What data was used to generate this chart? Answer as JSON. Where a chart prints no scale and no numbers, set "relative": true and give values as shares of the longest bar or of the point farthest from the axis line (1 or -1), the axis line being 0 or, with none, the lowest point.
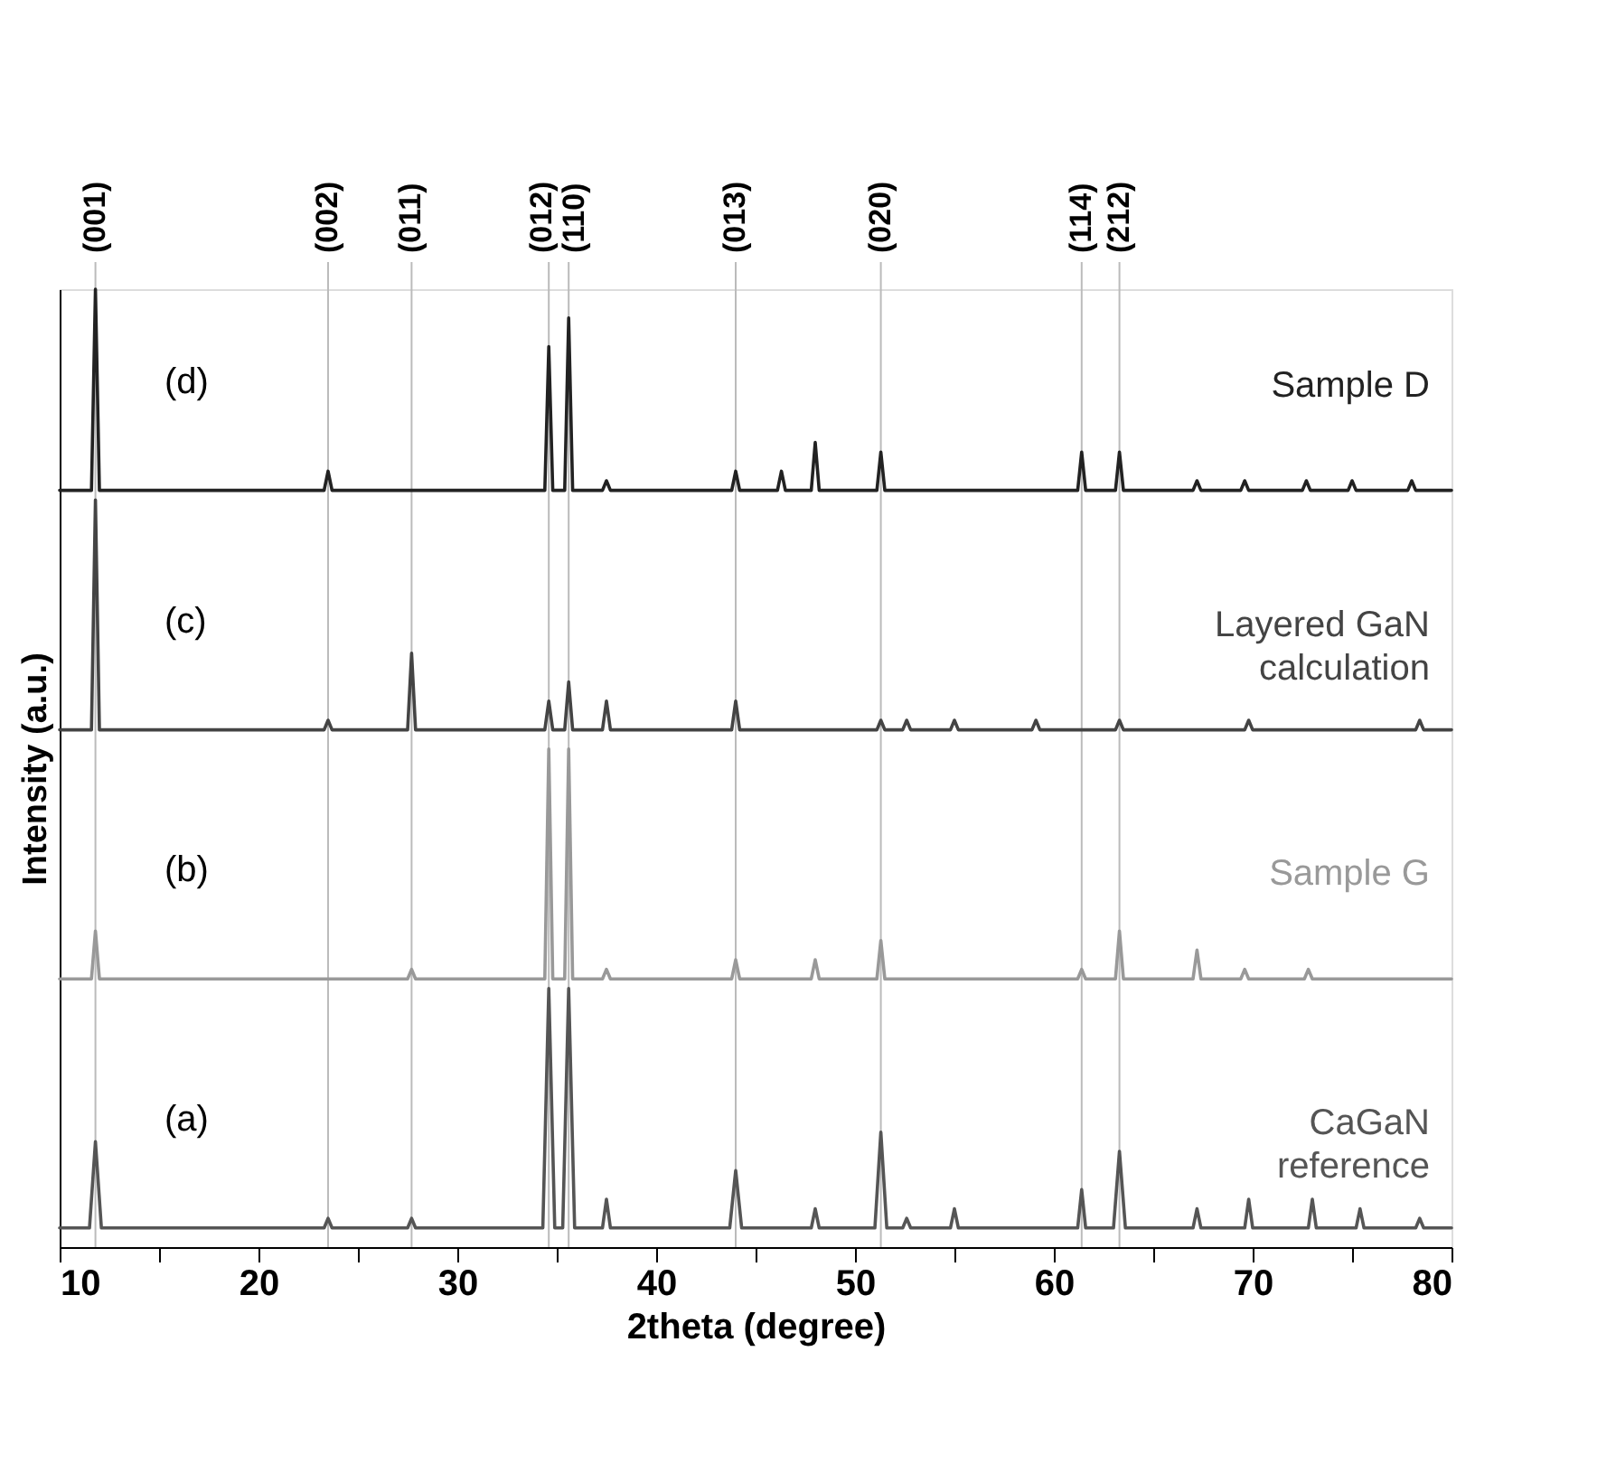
{
  "chart_data": {
    "type": "line",
    "relative": true,
    "xlabel": "2theta (degree)",
    "ylabel": "Intensity (a.u.)",
    "xlim": [
      10,
      80
    ],
    "xticks": [
      10,
      {
        "value": 15,
        "label": null
      },
      20,
      {
        "value": 25,
        "label": null
      },
      30,
      {
        "value": 35,
        "label": null
      },
      40,
      {
        "value": 45,
        "label": null
      },
      50,
      {
        "value": 55,
        "label": null
      },
      60,
      {
        "value": 65,
        "label": null
      },
      70,
      {
        "value": 75,
        "label": null
      },
      80
    ],
    "grid": false,
    "line_style": "solid",
    "legend": false,
    "annotations": [
      "(a)",
      "(b)",
      "(c)",
      "(d)",
      "(001)",
      "(002)",
      "(011)",
      "(012)",
      "(110)",
      "(013)",
      "(020)",
      "(114)",
      "(212)"
    ],
    "ref_lines": [
      {
        "axis": "x",
        "value": 11.8,
        "color": "#bbbbbb"
      },
      {
        "axis": "x",
        "value": 23.5,
        "color": "#bbbbbb"
      },
      {
        "axis": "x",
        "value": 27.7,
        "color": "#bbbbbb"
      },
      {
        "axis": "x",
        "value": 34.6,
        "color": "#bbbbbb"
      },
      {
        "axis": "x",
        "value": 35.6,
        "color": "#bbbbbb"
      },
      {
        "axis": "x",
        "value": 44.0,
        "color": "#bbbbbb"
      },
      {
        "axis": "x",
        "value": 51.3,
        "color": "#bbbbbb"
      },
      {
        "axis": "x",
        "value": 61.4,
        "color": "#bbbbbb"
      },
      {
        "axis": "x",
        "value": 63.3,
        "color": "#bbbbbb"
      }
    ],
    "series": [
      {
        "name": "CaGaN\nreference",
        "color": "#555555",
        "x": [
          10,
          11.5,
          11.8,
          12.1,
          23.3,
          23.5,
          23.7,
          27.5,
          27.7,
          27.9,
          34.3,
          34.6,
          34.9,
          35.3,
          35.6,
          35.9,
          37.3,
          37.5,
          37.7,
          43.7,
          44.0,
          44.3,
          47.8,
          48.0,
          48.2,
          51.0,
          51.3,
          51.6,
          52.4,
          52.6,
          52.8,
          54.8,
          55.0,
          55.2,
          61.2,
          61.4,
          61.6,
          63.0,
          63.3,
          63.6,
          67.0,
          67.2,
          67.4,
          69.6,
          69.8,
          70.0,
          72.8,
          73.0,
          73.2,
          75.2,
          75.4,
          75.6,
          78.2,
          78.4,
          78.6,
          80
        ],
        "values": [
          0.02,
          0.02,
          0.11,
          0.02,
          0.02,
          0.03,
          0.02,
          0.02,
          0.03,
          0.02,
          0.02,
          0.27,
          0.02,
          0.02,
          0.27,
          0.02,
          0.02,
          0.05,
          0.02,
          0.02,
          0.08,
          0.02,
          0.02,
          0.04,
          0.02,
          0.02,
          0.12,
          0.02,
          0.02,
          0.03,
          0.02,
          0.02,
          0.04,
          0.02,
          0.02,
          0.06,
          0.02,
          0.02,
          0.1,
          0.02,
          0.02,
          0.04,
          0.02,
          0.02,
          0.05,
          0.02,
          0.02,
          0.05,
          0.02,
          0.02,
          0.04,
          0.02,
          0.02,
          0.03,
          0.02,
          0.02
        ]
      },
      {
        "name": "Sample G",
        "color": "#999999",
        "x": [
          10,
          11.6,
          11.8,
          12.0,
          27.5,
          27.7,
          27.9,
          34.4,
          34.6,
          34.8,
          35.4,
          35.6,
          35.8,
          37.3,
          37.5,
          37.7,
          43.8,
          44.0,
          44.2,
          47.8,
          48.0,
          48.2,
          51.1,
          51.3,
          51.5,
          61.2,
          61.4,
          61.6,
          63.1,
          63.3,
          63.5,
          67.0,
          67.2,
          67.4,
          69.4,
          69.6,
          69.8,
          72.6,
          72.8,
          73.0,
          80
        ],
        "values": [
          0.28,
          0.28,
          0.33,
          0.28,
          0.28,
          0.29,
          0.28,
          0.28,
          0.52,
          0.28,
          0.28,
          0.52,
          0.28,
          0.28,
          0.29,
          0.28,
          0.28,
          0.3,
          0.28,
          0.28,
          0.3,
          0.28,
          0.28,
          0.32,
          0.28,
          0.28,
          0.29,
          0.28,
          0.28,
          0.33,
          0.28,
          0.28,
          0.31,
          0.28,
          0.28,
          0.29,
          0.28,
          0.28,
          0.29,
          0.28,
          0.28
        ]
      },
      {
        "name": "Layered GaN\ncalculation",
        "color": "#444444",
        "x": [
          10,
          11.6,
          11.8,
          12.0,
          23.3,
          23.5,
          23.7,
          27.5,
          27.7,
          27.9,
          34.4,
          34.6,
          34.8,
          35.4,
          35.6,
          35.8,
          37.3,
          37.5,
          37.7,
          43.8,
          44.0,
          44.2,
          51.1,
          51.3,
          51.5,
          52.4,
          52.6,
          52.8,
          54.8,
          55.0,
          55.2,
          58.9,
          59.1,
          59.3,
          63.1,
          63.3,
          63.5,
          69.6,
          69.8,
          70.0,
          78.2,
          78.4,
          78.6,
          80
        ],
        "values": [
          0.54,
          0.54,
          0.78,
          0.54,
          0.54,
          0.55,
          0.54,
          0.54,
          0.62,
          0.54,
          0.54,
          0.57,
          0.54,
          0.54,
          0.59,
          0.54,
          0.54,
          0.57,
          0.54,
          0.54,
          0.57,
          0.54,
          0.54,
          0.55,
          0.54,
          0.54,
          0.55,
          0.54,
          0.54,
          0.55,
          0.54,
          0.54,
          0.55,
          0.54,
          0.54,
          0.55,
          0.54,
          0.54,
          0.55,
          0.54,
          0.54,
          0.55,
          0.54,
          0.54
        ]
      },
      {
        "name": "Sample D",
        "color": "#222222",
        "x": [
          10,
          11.6,
          11.8,
          12.0,
          23.3,
          23.5,
          23.7,
          34.4,
          34.6,
          34.8,
          35.4,
          35.6,
          35.8,
          37.3,
          37.5,
          37.7,
          43.8,
          44.0,
          44.2,
          46.1,
          46.3,
          46.5,
          47.8,
          48.0,
          48.2,
          51.1,
          51.3,
          51.5,
          61.2,
          61.4,
          61.6,
          63.1,
          63.3,
          63.5,
          67.0,
          67.2,
          67.4,
          69.4,
          69.6,
          69.8,
          72.5,
          72.7,
          72.9,
          74.8,
          75.0,
          75.2,
          77.8,
          78.0,
          78.2,
          80
        ],
        "values": [
          0.79,
          0.79,
          1.0,
          0.79,
          0.79,
          0.81,
          0.79,
          0.79,
          0.94,
          0.79,
          0.79,
          0.97,
          0.79,
          0.79,
          0.8,
          0.79,
          0.79,
          0.81,
          0.79,
          0.79,
          0.81,
          0.79,
          0.79,
          0.84,
          0.79,
          0.79,
          0.83,
          0.79,
          0.79,
          0.83,
          0.79,
          0.79,
          0.83,
          0.79,
          0.79,
          0.8,
          0.79,
          0.79,
          0.8,
          0.79,
          0.79,
          0.8,
          0.79,
          0.79,
          0.8,
          0.79,
          0.79,
          0.8,
          0.79,
          0.79
        ]
      }
    ]
  }
}
